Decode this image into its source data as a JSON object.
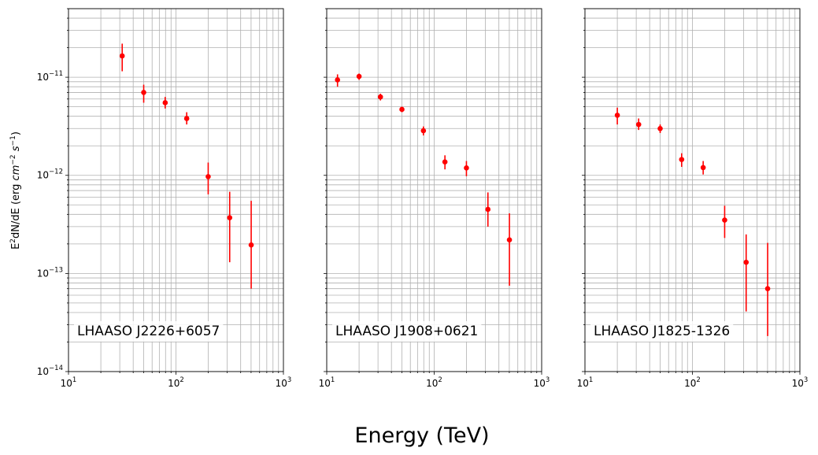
{
  "figure": {
    "xlabel": "Energy (TeV)",
    "ylabel": "E^2 dN/dE (erg cm^-2 s^-1)",
    "marker_color": "#ff0000",
    "grid_color": "#b0b0b0"
  },
  "chart_data": [
    {
      "type": "scatter",
      "label": "LHAASO J2226+6057",
      "x_scale": "log",
      "y_scale": "log",
      "xlim": [
        10,
        1000
      ],
      "ylim": [
        1e-14,
        5e-11
      ],
      "x_ticks": [
        "10^1",
        "10^2",
        "10^3"
      ],
      "y_ticks": [
        "10^-14",
        "10^-13",
        "10^-12",
        "10^-11"
      ],
      "grid": "both-major-minor",
      "points": [
        {
          "x": 31.6,
          "y": 1.65e-11,
          "ylo": 1.15e-11,
          "yhi": 2.2e-11
        },
        {
          "x": 50.1,
          "y": 7e-12,
          "ylo": 5.5e-12,
          "yhi": 8.4e-12
        },
        {
          "x": 79.4,
          "y": 5.5e-12,
          "ylo": 4.8e-12,
          "yhi": 6.3e-12
        },
        {
          "x": 125.9,
          "y": 3.8e-12,
          "ylo": 3.3e-12,
          "yhi": 4.4e-12
        },
        {
          "x": 199.5,
          "y": 9.7e-13,
          "ylo": 6.4e-13,
          "yhi": 1.35e-12
        },
        {
          "x": 316.2,
          "y": 3.7e-13,
          "ylo": 1.3e-13,
          "yhi": 6.8e-13
        },
        {
          "x": 501.2,
          "y": 1.95e-13,
          "ylo": 7e-14,
          "yhi": 5.5e-13
        }
      ]
    },
    {
      "type": "scatter",
      "label": "LHAASO J1908+0621",
      "x_scale": "log",
      "y_scale": "log",
      "xlim": [
        10,
        1000
      ],
      "ylim": [
        1e-14,
        5e-11
      ],
      "x_ticks": [
        "10^1",
        "10^2",
        "10^3"
      ],
      "y_ticks": [],
      "grid": "both-major-minor",
      "points": [
        {
          "x": 12.6,
          "y": 9.4e-12,
          "ylo": 8e-12,
          "yhi": 1.07e-11
        },
        {
          "x": 20.0,
          "y": 1.02e-11,
          "ylo": 9.4e-12,
          "yhi": 1.09e-11
        },
        {
          "x": 31.6,
          "y": 6.3e-12,
          "ylo": 5.8e-12,
          "yhi": 6.8e-12
        },
        {
          "x": 50.1,
          "y": 4.7e-12,
          "ylo": 4.4e-12,
          "yhi": 5e-12
        },
        {
          "x": 79.4,
          "y": 2.85e-12,
          "ylo": 2.55e-12,
          "yhi": 3.15e-12
        },
        {
          "x": 125.9,
          "y": 1.37e-12,
          "ylo": 1.15e-12,
          "yhi": 1.6e-12
        },
        {
          "x": 199.5,
          "y": 1.19e-12,
          "ylo": 9.8e-13,
          "yhi": 1.4e-12
        },
        {
          "x": 316.2,
          "y": 4.5e-13,
          "ylo": 3e-13,
          "yhi": 6.7e-13
        },
        {
          "x": 501.2,
          "y": 2.2e-13,
          "ylo": 7.5e-14,
          "yhi": 4.1e-13
        }
      ]
    },
    {
      "type": "scatter",
      "label": "LHAASO J1825-1326",
      "x_scale": "log",
      "y_scale": "log",
      "xlim": [
        10,
        1000
      ],
      "ylim": [
        1e-14,
        5e-11
      ],
      "x_ticks": [
        "10^1",
        "10^2",
        "10^3"
      ],
      "y_ticks": [],
      "grid": "both-major-minor",
      "points": [
        {
          "x": 20.0,
          "y": 4.1e-12,
          "ylo": 3.3e-12,
          "yhi": 4.9e-12
        },
        {
          "x": 31.6,
          "y": 3.3e-12,
          "ylo": 2.9e-12,
          "yhi": 3.8e-12
        },
        {
          "x": 50.1,
          "y": 3e-12,
          "ylo": 2.7e-12,
          "yhi": 3.3e-12
        },
        {
          "x": 79.4,
          "y": 1.45e-12,
          "ylo": 1.22e-12,
          "yhi": 1.68e-12
        },
        {
          "x": 125.9,
          "y": 1.2e-12,
          "ylo": 1.02e-12,
          "yhi": 1.4e-12
        },
        {
          "x": 199.5,
          "y": 3.5e-13,
          "ylo": 2.3e-13,
          "yhi": 4.9e-13
        },
        {
          "x": 316.2,
          "y": 1.3e-13,
          "ylo": 4.1e-14,
          "yhi": 2.5e-13
        },
        {
          "x": 501.2,
          "y": 7e-14,
          "ylo": 2.3e-14,
          "yhi": 2.05e-13
        }
      ]
    }
  ]
}
